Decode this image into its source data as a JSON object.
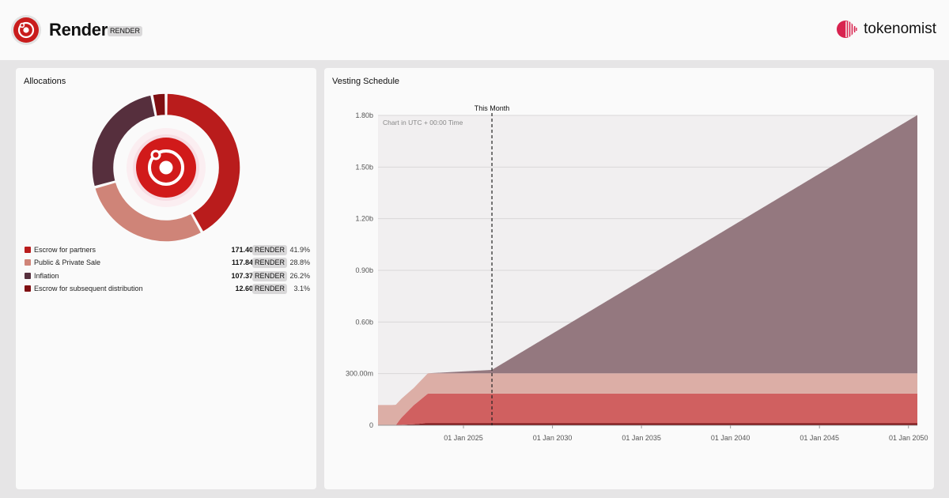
{
  "header": {
    "token_name": "Render",
    "token_symbol": "RENDER",
    "brand": "tokenomist",
    "token_logo": "render-logo-icon",
    "brand_logo": "tokenomist-logo-icon"
  },
  "allocations": {
    "title": "Allocations",
    "items": [
      {
        "label": "Escrow for partners",
        "amount": "171.40m",
        "symbol": "RENDER",
        "percent": "41.9%",
        "share": 41.9,
        "color": "#b91c1c"
      },
      {
        "label": "Public & Private Sale",
        "amount": "117.84m",
        "symbol": "RENDER",
        "percent": "28.8%",
        "share": 28.8,
        "color": "#cf8478"
      },
      {
        "label": "Inflation",
        "amount": "107.37m",
        "symbol": "RENDER",
        "percent": "26.2%",
        "share": 26.2,
        "color": "#562f3d"
      },
      {
        "label": "Escrow for subsequent distribution",
        "amount": "12.60m",
        "symbol": "RENDER",
        "percent": "3.1%",
        "share": 3.1,
        "color": "#7f0f12"
      }
    ]
  },
  "vesting": {
    "title": "Vesting Schedule",
    "note": "Chart in UTC + 00:00 Time",
    "marker_label": "This Month"
  },
  "chart_data": [
    {
      "type": "pie",
      "title": "Allocations",
      "categories": [
        "Escrow for partners",
        "Public & Private Sale",
        "Inflation",
        "Escrow for subsequent distribution"
      ],
      "values": [
        41.9,
        28.8,
        26.2,
        3.1
      ],
      "colors": [
        "#b91c1c",
        "#cf8478",
        "#562f3d",
        "#7f0f12"
      ]
    },
    {
      "type": "area",
      "title": "Vesting Schedule",
      "stacked": true,
      "ylim": [
        0,
        1800000000
      ],
      "yticks": [
        0,
        300000000,
        600000000,
        900000000,
        1200000000,
        1500000000,
        1800000000
      ],
      "ytick_labels": [
        "0",
        "300.00m",
        "0.60b",
        "0.90b",
        "1.20b",
        "1.50b",
        "1.80b"
      ],
      "xlim": [
        2020.2,
        2050.5
      ],
      "xticks": [
        2025,
        2030,
        2035,
        2040,
        2045,
        2050
      ],
      "xtick_labels": [
        "01 Jan 2025",
        "01 Jan 2030",
        "01 Jan 2035",
        "01 Jan 2040",
        "01 Jan 2045",
        "01 Jan 2050"
      ],
      "marker": {
        "x": 2026.6,
        "label": "This Month"
      },
      "grid": true,
      "series": [
        {
          "name": "Escrow for subsequent distribution",
          "color": "#7f0f12",
          "x": [
            2020.2,
            2021.0,
            2022.2,
            2023.0,
            2050.5
          ],
          "values": [
            0,
            0,
            6000000,
            12600000,
            12600000
          ]
        },
        {
          "name": "Escrow for partners",
          "color": "#d06060",
          "x": [
            2020.2,
            2021.2,
            2021.5,
            2022.2,
            2023.0,
            2050.5
          ],
          "values": [
            0,
            0,
            40000000,
            110000000,
            171400000,
            171400000
          ]
        },
        {
          "name": "Public & Private Sale",
          "color": "#dcaea6",
          "x": [
            2020.2,
            2021.2,
            2021.5,
            2022.2,
            2023.0,
            2050.5
          ],
          "values": [
            117840000,
            117840000,
            110000000,
            100000000,
            117840000,
            117840000
          ]
        },
        {
          "name": "Inflation",
          "color": "#94787f",
          "x": [
            2020.2,
            2023.0,
            2026.6,
            2050.5
          ],
          "values": [
            0,
            0,
            20000000,
            1500000000
          ]
        }
      ]
    }
  ]
}
